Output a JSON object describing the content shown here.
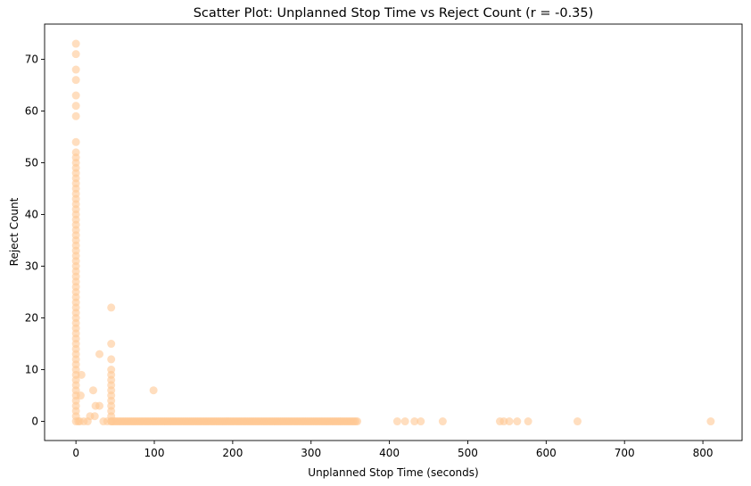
{
  "chart_data": {
    "type": "scatter",
    "title": "Scatter Plot: Unplanned Stop Time vs Reject Count (r = -0.35)",
    "xlabel": "Unplanned Stop Time (seconds)",
    "ylabel": "Reject Count",
    "xlim": [
      -40,
      850
    ],
    "ylim": [
      -3.7,
      76.8
    ],
    "x_ticks": [
      0,
      100,
      200,
      300,
      400,
      500,
      600,
      700,
      800
    ],
    "y_ticks": [
      0,
      10,
      20,
      30,
      40,
      50,
      60,
      70
    ],
    "grid": false,
    "legend": "none",
    "marker_color": "#ffc894",
    "marker_alpha": 0.6,
    "points": {
      "x0_y": [
        0,
        1,
        2,
        3,
        4,
        5,
        6,
        7,
        8,
        9,
        10,
        11,
        12,
        13,
        14,
        15,
        16,
        17,
        18,
        19,
        20,
        21,
        22,
        23,
        24,
        25,
        26,
        27,
        28,
        29,
        30,
        31,
        32,
        33,
        34,
        35,
        36,
        37,
        38,
        39,
        40,
        41,
        42,
        43,
        44,
        45,
        46,
        47,
        48,
        49,
        50,
        51,
        52,
        54,
        59,
        61,
        63,
        66,
        68,
        71,
        73
      ],
      "near0": [
        [
          3,
          0
        ],
        [
          5,
          0
        ],
        [
          6,
          5
        ],
        [
          7,
          9
        ],
        [
          10,
          0
        ],
        [
          15,
          0
        ],
        [
          18,
          1
        ],
        [
          22,
          6
        ],
        [
          24,
          1
        ],
        [
          25,
          3
        ],
        [
          30,
          3
        ],
        [
          30,
          13
        ],
        [
          35,
          0
        ],
        [
          40,
          0
        ]
      ],
      "x45_y": [
        0,
        1,
        2,
        3,
        4,
        5,
        6,
        7,
        8,
        9,
        10,
        12,
        15,
        22
      ],
      "other": [
        [
          99,
          6
        ],
        [
          410,
          0
        ],
        [
          420,
          0
        ],
        [
          432,
          0
        ],
        [
          440,
          0
        ],
        [
          468,
          0
        ],
        [
          541,
          0
        ],
        [
          546,
          0
        ],
        [
          553,
          0
        ],
        [
          563,
          0
        ],
        [
          577,
          0
        ],
        [
          640,
          0
        ],
        [
          810,
          0
        ]
      ],
      "dense_floor_x_range": [
        45,
        360
      ]
    }
  }
}
